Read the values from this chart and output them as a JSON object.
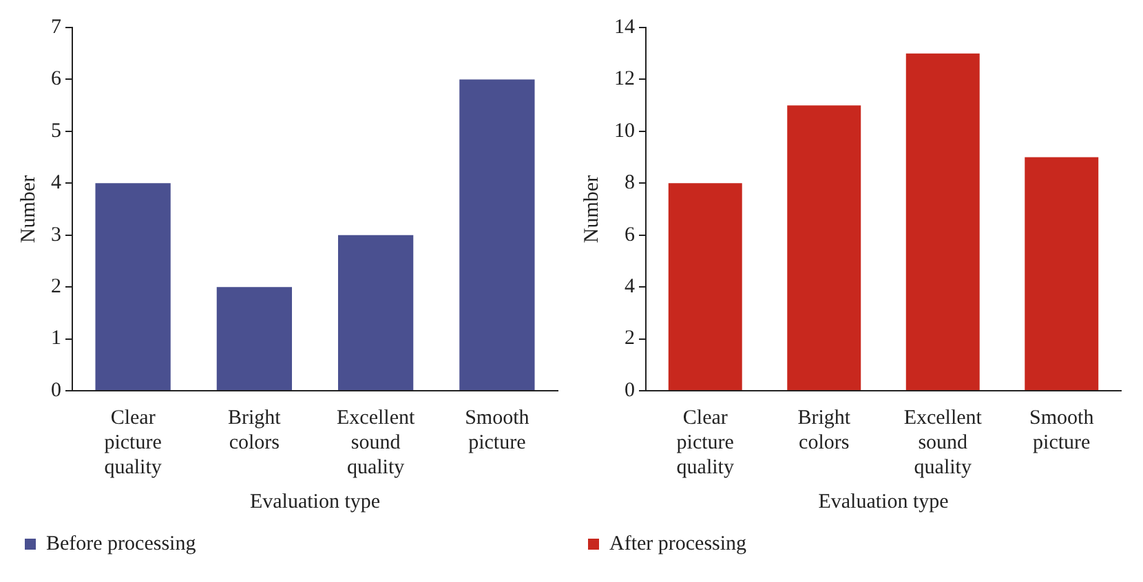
{
  "chart_data": [
    {
      "type": "bar",
      "categories": [
        "Clear picture quality",
        "Bright colors",
        "Excellent sound quality",
        "Smooth picture"
      ],
      "xlabel": "Evaluation type",
      "ylabel": "Number",
      "ylim": [
        0,
        7
      ],
      "yticks": [
        0,
        1,
        2,
        3,
        4,
        5,
        6,
        7
      ],
      "legend": "bottom left",
      "series": [
        {
          "name": "Before processing",
          "color": "#4a5090",
          "values": [
            4,
            2,
            3,
            6
          ]
        }
      ]
    },
    {
      "type": "bar",
      "categories": [
        "Clear picture quality",
        "Bright colors",
        "Excellent sound quality",
        "Smooth picture"
      ],
      "xlabel": "Evaluation type",
      "ylabel": "Number",
      "ylim": [
        0,
        14
      ],
      "yticks": [
        0,
        2,
        4,
        6,
        8,
        10,
        12,
        14
      ],
      "legend": "bottom left",
      "series": [
        {
          "name": "After processing",
          "color": "#c8281e",
          "values": [
            8,
            11,
            13,
            9
          ]
        }
      ]
    }
  ]
}
